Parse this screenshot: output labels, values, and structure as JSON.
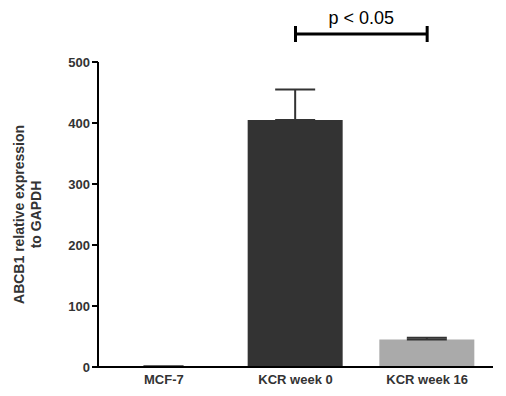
{
  "chart_data": {
    "type": "bar",
    "categories": [
      "MCF-7",
      "KCR week 0",
      "KCR week 16"
    ],
    "values": [
      1,
      405,
      45
    ],
    "error": [
      0,
      50,
      3
    ],
    "colors": [
      "#333333",
      "#333333",
      "#aaaaaa"
    ],
    "y_label": "ABCB1 relative expression\nto GAPDH",
    "annotation": {
      "text": "p < 0.05",
      "between": [
        "KCR week 0",
        "KCR week 16"
      ]
    },
    "ylim": [
      0,
      500
    ],
    "yticks": [
      0,
      100,
      200,
      300,
      400,
      500
    ],
    "grid": false
  }
}
